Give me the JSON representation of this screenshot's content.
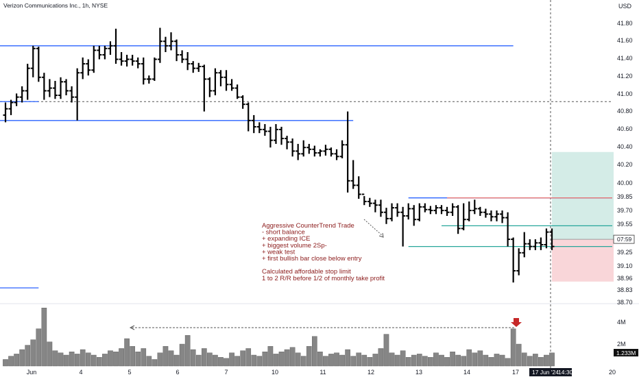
{
  "chart_data": {
    "type": "ohlc",
    "title": "Verizon Communications Inc., 1h, NYSE",
    "currency": "USD",
    "price_ticks": [
      "41.80",
      "41.60",
      "41.40",
      "41.20",
      "41.00",
      "40.80",
      "40.60",
      "40.40",
      "40.20",
      "40.00",
      "39.85",
      "39.70",
      "39.55",
      "39.25",
      "39.10",
      "38.96",
      "38.83",
      "38.70"
    ],
    "volume_ticks": [
      "4M",
      "2M"
    ],
    "x_ticks": [
      "Jun",
      "4",
      "5",
      "6",
      "7",
      "10",
      "11",
      "12",
      "13",
      "14",
      "17",
      "20"
    ],
    "last_price": "07:59",
    "last_volume": "1.233M",
    "crosshair_date": "17 Jun '24",
    "crosshair_time": "14:30",
    "bars": [
      {
        "o": 40.78,
        "h": 40.92,
        "l": 40.7,
        "c": 40.85
      },
      {
        "o": 40.85,
        "h": 40.95,
        "l": 40.78,
        "c": 40.92
      },
      {
        "o": 40.92,
        "h": 41.02,
        "l": 40.88,
        "c": 40.98
      },
      {
        "o": 40.98,
        "h": 41.1,
        "l": 40.92,
        "c": 41.05
      },
      {
        "o": 41.05,
        "h": 41.35,
        "l": 40.95,
        "c": 41.3
      },
      {
        "o": 41.3,
        "h": 41.55,
        "l": 41.2,
        "c": 41.52
      },
      {
        "o": 41.52,
        "h": 41.54,
        "l": 41.15,
        "c": 41.2
      },
      {
        "o": 41.2,
        "h": 41.25,
        "l": 40.95,
        "c": 41.05
      },
      {
        "o": 41.05,
        "h": 41.18,
        "l": 40.98,
        "c": 41.08
      },
      {
        "o": 41.08,
        "h": 41.16,
        "l": 40.96,
        "c": 41.0
      },
      {
        "o": 41.0,
        "h": 41.2,
        "l": 40.96,
        "c": 41.15
      },
      {
        "o": 41.15,
        "h": 41.18,
        "l": 41.0,
        "c": 41.05
      },
      {
        "o": 41.05,
        "h": 41.1,
        "l": 40.92,
        "c": 40.98
      },
      {
        "o": 40.98,
        "h": 41.3,
        "l": 40.72,
        "c": 41.25
      },
      {
        "o": 41.25,
        "h": 41.42,
        "l": 41.18,
        "c": 41.35
      },
      {
        "o": 41.35,
        "h": 41.4,
        "l": 41.22,
        "c": 41.28
      },
      {
        "o": 41.28,
        "h": 41.55,
        "l": 41.25,
        "c": 41.5
      },
      {
        "o": 41.5,
        "h": 41.55,
        "l": 41.4,
        "c": 41.45
      },
      {
        "o": 41.45,
        "h": 41.55,
        "l": 41.4,
        "c": 41.52
      },
      {
        "o": 41.52,
        "h": 41.6,
        "l": 41.45,
        "c": 41.55
      },
      {
        "o": 41.55,
        "h": 41.74,
        "l": 41.35,
        "c": 41.4
      },
      {
        "o": 41.4,
        "h": 41.48,
        "l": 41.33,
        "c": 41.38
      },
      {
        "o": 41.38,
        "h": 41.45,
        "l": 41.32,
        "c": 41.4
      },
      {
        "o": 41.4,
        "h": 41.45,
        "l": 41.33,
        "c": 41.38
      },
      {
        "o": 41.38,
        "h": 41.42,
        "l": 41.3,
        "c": 41.35
      },
      {
        "o": 41.35,
        "h": 41.42,
        "l": 41.12,
        "c": 41.18
      },
      {
        "o": 41.18,
        "h": 41.22,
        "l": 41.13,
        "c": 41.18
      },
      {
        "o": 41.18,
        "h": 41.42,
        "l": 41.16,
        "c": 41.4
      },
      {
        "o": 41.4,
        "h": 41.75,
        "l": 41.36,
        "c": 41.6
      },
      {
        "o": 41.6,
        "h": 41.65,
        "l": 41.48,
        "c": 41.55
      },
      {
        "o": 41.55,
        "h": 41.7,
        "l": 41.5,
        "c": 41.6
      },
      {
        "o": 41.6,
        "h": 41.62,
        "l": 41.38,
        "c": 41.45
      },
      {
        "o": 41.45,
        "h": 41.5,
        "l": 41.36,
        "c": 41.4
      },
      {
        "o": 41.4,
        "h": 41.48,
        "l": 41.28,
        "c": 41.35
      },
      {
        "o": 41.35,
        "h": 41.38,
        "l": 41.25,
        "c": 41.3
      },
      {
        "o": 41.3,
        "h": 41.36,
        "l": 41.26,
        "c": 41.32
      },
      {
        "o": 41.32,
        "h": 41.34,
        "l": 40.82,
        "c": 41.18
      },
      {
        "o": 41.18,
        "h": 41.2,
        "l": 40.98,
        "c": 41.05
      },
      {
        "o": 41.05,
        "h": 41.3,
        "l": 41.0,
        "c": 41.25
      },
      {
        "o": 41.25,
        "h": 41.28,
        "l": 41.1,
        "c": 41.2
      },
      {
        "o": 41.2,
        "h": 41.28,
        "l": 41.05,
        "c": 41.12
      },
      {
        "o": 41.12,
        "h": 41.18,
        "l": 41.05,
        "c": 41.08
      },
      {
        "o": 41.08,
        "h": 41.12,
        "l": 40.96,
        "c": 40.98
      },
      {
        "o": 40.98,
        "h": 41.0,
        "l": 40.85,
        "c": 40.9
      },
      {
        "o": 40.9,
        "h": 40.92,
        "l": 40.6,
        "c": 40.72
      },
      {
        "o": 40.72,
        "h": 40.78,
        "l": 40.58,
        "c": 40.65
      },
      {
        "o": 40.65,
        "h": 40.7,
        "l": 40.58,
        "c": 40.62
      },
      {
        "o": 40.62,
        "h": 40.68,
        "l": 40.55,
        "c": 40.6
      },
      {
        "o": 40.6,
        "h": 40.65,
        "l": 40.42,
        "c": 40.5
      },
      {
        "o": 40.5,
        "h": 40.68,
        "l": 40.46,
        "c": 40.62
      },
      {
        "o": 40.62,
        "h": 40.65,
        "l": 40.45,
        "c": 40.52
      },
      {
        "o": 40.52,
        "h": 40.55,
        "l": 40.4,
        "c": 40.48
      },
      {
        "o": 40.48,
        "h": 40.52,
        "l": 40.32,
        "c": 40.38
      },
      {
        "o": 40.38,
        "h": 40.46,
        "l": 40.28,
        "c": 40.35
      },
      {
        "o": 40.35,
        "h": 40.5,
        "l": 40.32,
        "c": 40.42
      },
      {
        "o": 40.42,
        "h": 40.46,
        "l": 40.35,
        "c": 40.4
      },
      {
        "o": 40.4,
        "h": 40.44,
        "l": 40.32,
        "c": 40.36
      },
      {
        "o": 40.36,
        "h": 40.4,
        "l": 40.32,
        "c": 40.38
      },
      {
        "o": 40.38,
        "h": 40.45,
        "l": 40.33,
        "c": 40.4
      },
      {
        "o": 40.4,
        "h": 40.42,
        "l": 40.32,
        "c": 40.35
      },
      {
        "o": 40.35,
        "h": 40.4,
        "l": 40.28,
        "c": 40.32
      },
      {
        "o": 40.32,
        "h": 40.5,
        "l": 40.3,
        "c": 40.45
      },
      {
        "o": 40.45,
        "h": 40.82,
        "l": 39.92,
        "c": 40.05
      },
      {
        "o": 40.05,
        "h": 40.28,
        "l": 39.96,
        "c": 40.0
      },
      {
        "o": 40.0,
        "h": 40.1,
        "l": 39.85,
        "c": 39.9
      },
      {
        "o": 39.9,
        "h": 39.88,
        "l": 39.78,
        "c": 39.82
      },
      {
        "o": 39.82,
        "h": 39.86,
        "l": 39.76,
        "c": 39.8
      },
      {
        "o": 39.8,
        "h": 39.84,
        "l": 39.7,
        "c": 39.78
      },
      {
        "o": 39.78,
        "h": 39.84,
        "l": 39.65,
        "c": 39.7
      },
      {
        "o": 39.7,
        "h": 39.75,
        "l": 39.57,
        "c": 39.63
      },
      {
        "o": 39.63,
        "h": 39.8,
        "l": 39.6,
        "c": 39.75
      },
      {
        "o": 39.75,
        "h": 39.8,
        "l": 39.65,
        "c": 39.7
      },
      {
        "o": 39.7,
        "h": 39.76,
        "l": 39.32,
        "c": 39.66
      },
      {
        "o": 39.66,
        "h": 39.8,
        "l": 39.62,
        "c": 39.74
      },
      {
        "o": 39.74,
        "h": 39.78,
        "l": 39.55,
        "c": 39.62
      },
      {
        "o": 39.62,
        "h": 39.8,
        "l": 39.6,
        "c": 39.76
      },
      {
        "o": 39.76,
        "h": 39.8,
        "l": 39.7,
        "c": 39.73
      },
      {
        "o": 39.73,
        "h": 39.77,
        "l": 39.68,
        "c": 39.72
      },
      {
        "o": 39.72,
        "h": 39.78,
        "l": 39.68,
        "c": 39.75
      },
      {
        "o": 39.75,
        "h": 39.78,
        "l": 39.68,
        "c": 39.72
      },
      {
        "o": 39.72,
        "h": 39.76,
        "l": 39.66,
        "c": 39.7
      },
      {
        "o": 39.7,
        "h": 39.8,
        "l": 39.66,
        "c": 39.76
      },
      {
        "o": 39.76,
        "h": 39.78,
        "l": 39.46,
        "c": 39.52
      },
      {
        "o": 39.52,
        "h": 39.8,
        "l": 39.5,
        "c": 39.62
      },
      {
        "o": 39.62,
        "h": 39.82,
        "l": 39.6,
        "c": 39.72
      },
      {
        "o": 39.72,
        "h": 39.84,
        "l": 39.68,
        "c": 39.74
      },
      {
        "o": 39.74,
        "h": 39.76,
        "l": 39.66,
        "c": 39.7
      },
      {
        "o": 39.7,
        "h": 39.74,
        "l": 39.64,
        "c": 39.68
      },
      {
        "o": 39.68,
        "h": 39.72,
        "l": 39.6,
        "c": 39.65
      },
      {
        "o": 39.65,
        "h": 39.72,
        "l": 39.6,
        "c": 39.68
      },
      {
        "o": 39.68,
        "h": 39.72,
        "l": 39.58,
        "c": 39.64
      },
      {
        "o": 39.64,
        "h": 39.7,
        "l": 39.32,
        "c": 39.4
      },
      {
        "o": 39.4,
        "h": 39.42,
        "l": 38.92,
        "c": 39.05
      },
      {
        "o": 39.05,
        "h": 39.3,
        "l": 39.0,
        "c": 39.25
      },
      {
        "o": 39.25,
        "h": 39.48,
        "l": 39.2,
        "c": 39.35
      },
      {
        "o": 39.35,
        "h": 39.4,
        "l": 39.28,
        "c": 39.32
      },
      {
        "o": 39.32,
        "h": 39.4,
        "l": 39.28,
        "c": 39.36
      },
      {
        "o": 39.36,
        "h": 39.42,
        "l": 39.28,
        "c": 39.34
      },
      {
        "o": 39.34,
        "h": 39.52,
        "l": 39.3,
        "c": 39.48
      },
      {
        "o": 39.48,
        "h": 39.52,
        "l": 39.28,
        "c": 39.32
      }
    ],
    "volumes": [
      0.6,
      0.9,
      1.1,
      1.5,
      1.9,
      2.4,
      3.4,
      5.3,
      2.2,
      1.4,
      1.2,
      1.0,
      1.3,
      1.1,
      1.5,
      1.2,
      1.0,
      0.8,
      1.1,
      1.4,
      1.3,
      1.6,
      2.5,
      1.8,
      1.3,
      1.6,
      0.9,
      0.6,
      1.2,
      1.8,
      1.4,
      1.0,
      2.0,
      2.8,
      1.5,
      1.0,
      1.6,
      1.2,
      1.0,
      0.8,
      0.7,
      1.2,
      0.9,
      1.4,
      1.6,
      1.0,
      0.9,
      1.3,
      1.8,
      1.1,
      1.3,
      1.5,
      1.7,
      1.2,
      0.9,
      1.8,
      2.7,
      1.3,
      0.9,
      1.1,
      1.2,
      1.0,
      1.5,
      0.9,
      1.2,
      1.0,
      0.8,
      1.1,
      1.6,
      2.9,
      1.2,
      1.0,
      1.4,
      0.8,
      1.0,
      1.1,
      0.9,
      0.8,
      1.2,
      1.0,
      0.8,
      1.3,
      1.0,
      0.9,
      1.5,
      1.2,
      1.4,
      1.0,
      0.8,
      1.1,
      1.0,
      0.7,
      3.4,
      2.0,
      1.2,
      0.9,
      1.1,
      0.8,
      1.0,
      1.2
    ],
    "horizontal_levels": [
      {
        "price": 41.55,
        "color": "#2962ff",
        "start_bar": 0,
        "end_bar": 92
      },
      {
        "price": 40.93,
        "color": "#2962ff",
        "start_bar": 0,
        "end_bar": 6
      },
      {
        "price": 40.72,
        "color": "#2962ff",
        "start_bar": 0,
        "end_bar": 63
      },
      {
        "price": 39.86,
        "color": "#2962ff",
        "start_bar": 73,
        "end_bar": 110
      },
      {
        "price": 39.86,
        "color": "#e57373",
        "start_bar": 80,
        "end_bar": 110
      },
      {
        "price": 39.55,
        "color": "#26a69a",
        "start_bar": 79,
        "end_bar": 102
      },
      {
        "price": 39.32,
        "color": "#26a69a",
        "start_bar": 73,
        "end_bar": 110
      },
      {
        "price": 38.86,
        "color": "#2962ff",
        "start_bar": 0,
        "end_bar": 6
      }
    ],
    "dashed_level": 40.93,
    "target_zone": {
      "top": 40.37,
      "bottom": 39.4
    },
    "stop_zone": {
      "top": 39.4,
      "bottom": 38.93
    },
    "annotation": {
      "lines": [
        "Aggressive CounterTrend Trade",
        "- short balance",
        "+ expanding ICE",
        "+ biggest volume 2Sp-",
        "+ weak test",
        "+ first bullish bar close below entry",
        "",
        "Calculated affordable stop limit",
        "1 to 2 R/R before 1/2 of monthly take profit"
      ]
    },
    "colors": {
      "bar": "#000000",
      "volume": "#868686",
      "volume_border": "#555555",
      "target_fill": "#d4ece7",
      "stop_fill": "#f9d6d9",
      "arrow": "#c62828"
    }
  }
}
